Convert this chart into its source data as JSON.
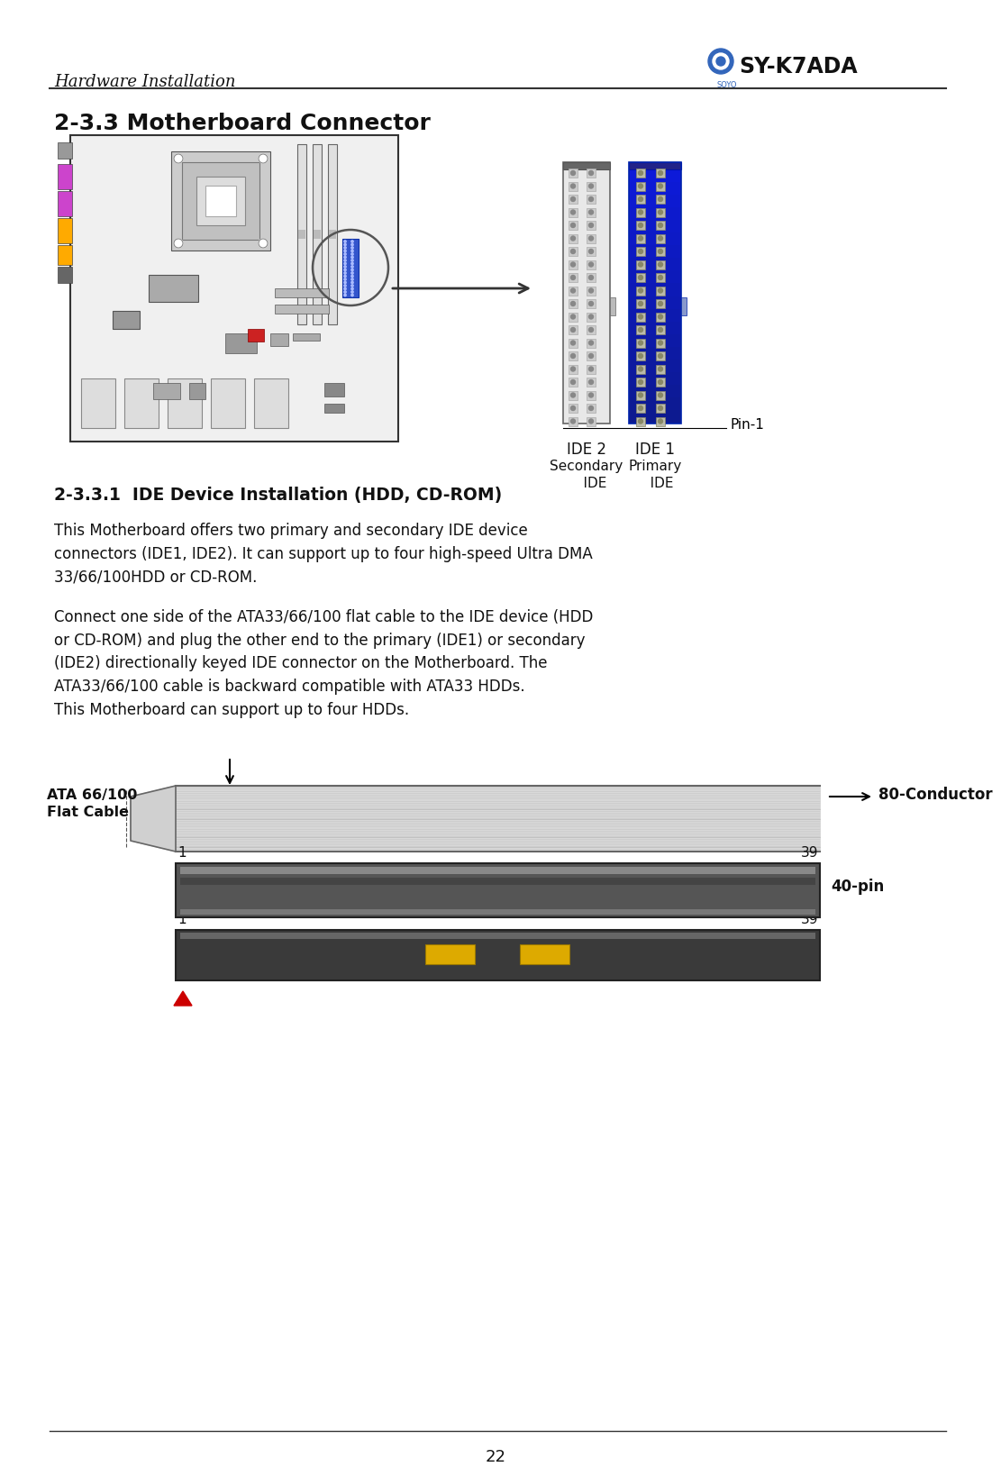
{
  "page_bg": "#ffffff",
  "header_italic": "Hardware Installation",
  "header_brand": "SY-K7ADA",
  "section_title": "2-3.3 Motherboard Connector",
  "subsection_title": "2-3.3.1  IDE Device Installation (HDD, CD-ROM)",
  "body_text_1": "This Motherboard offers two primary and secondary IDE device\nconnectors (IDE1, IDE2). It can support up to four high-speed Ultra DMA\n33/66/100HDD or CD-ROM.",
  "body_text_2": "Connect one side of the ATA33/66/100 flat cable to the IDE device (HDD\nor CD-ROM) and plug the other end to the primary (IDE1) or secondary\n(IDE2) directionally keyed IDE connector on the Motherboard. The\nATA33/66/100 cable is backward compatible with ATA33 HDDs.\nThis Motherboard can support up to four HDDs.",
  "ide_label_2": "IDE 2",
  "ide_label_1": "IDE 1",
  "pin1_label": "Pin-1",
  "conductor_label": "80-Conductor",
  "flat_cable_label": "ATA 66/100\nFlat Cable",
  "pin40_label": "40-pin",
  "num_1a": "1",
  "num_39a": "39",
  "num_1b": "1",
  "num_39b": "39",
  "footer_text": "22",
  "mb_board_color": "#f0f0f0",
  "mb_border_color": "#333333",
  "cpu_color": "#e8e8e8",
  "ide2_bg": "#e8e8e8",
  "ide1_bg": "#2244bb",
  "ide_pin_light": "#dddddd",
  "ide_pin_dark": "#aaaaaa",
  "ide1_pin_color": "#ddcc88",
  "connector_dark": "#555555",
  "connector_light": "#888888",
  "cable_light": "#dddddd",
  "cable_dark": "#aaaaaa",
  "gold_color": "#cc9900"
}
